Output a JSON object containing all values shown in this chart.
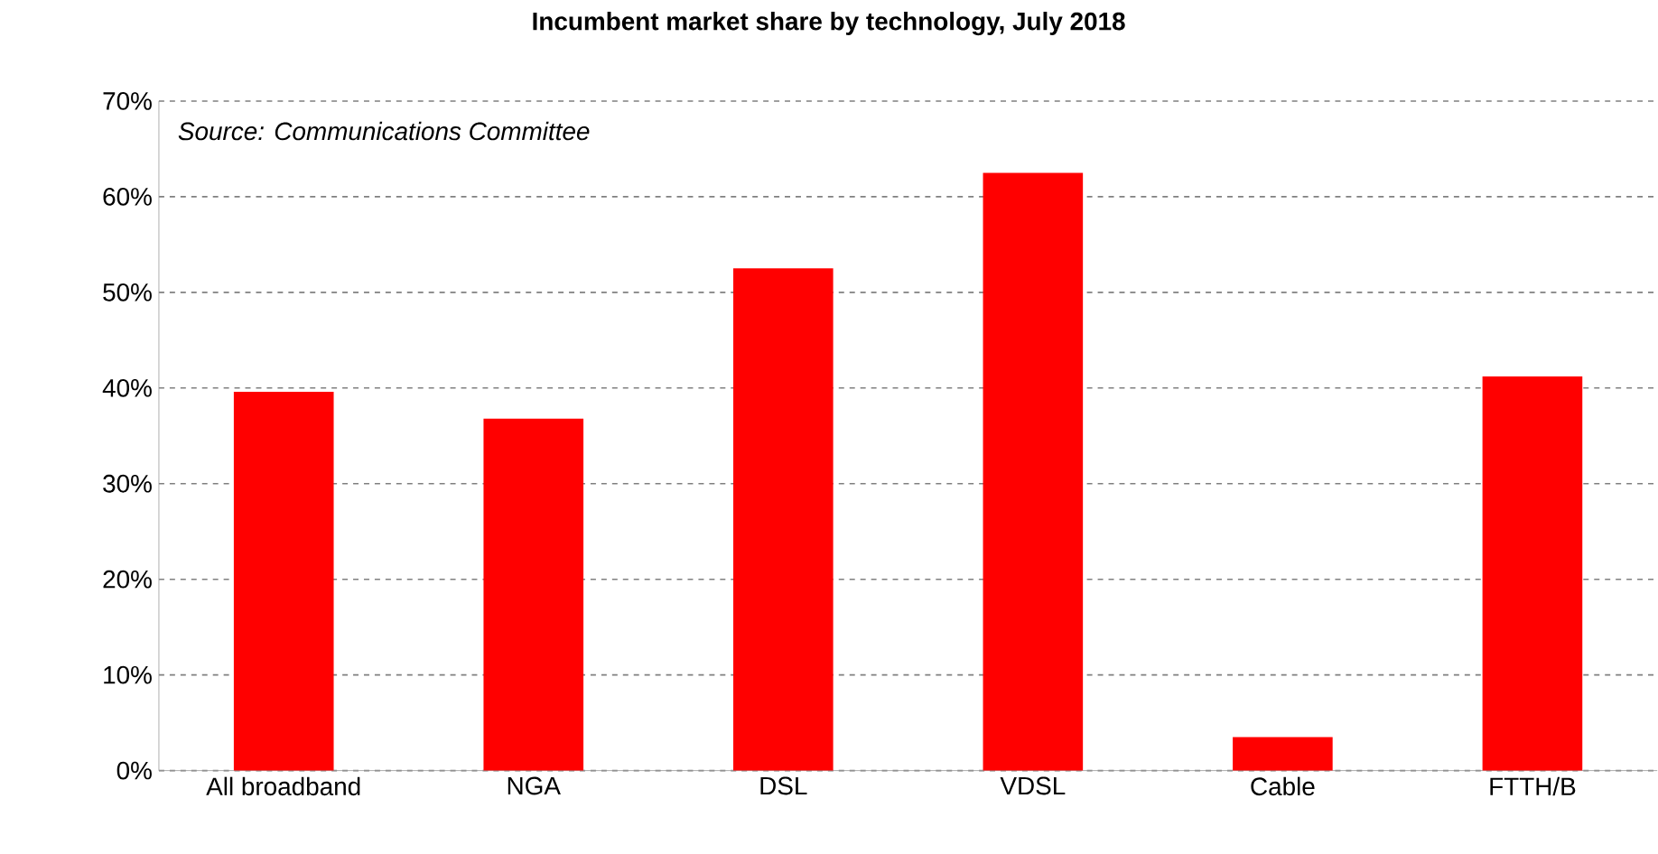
{
  "chart_data": {
    "type": "bar",
    "title": "Incumbent market share by technology, July 2018",
    "categories": [
      "All broadband",
      "NGA",
      "DSL",
      "VDSL",
      "Cable",
      "FTTH/B"
    ],
    "values": [
      39.6,
      36.8,
      52.5,
      62.5,
      3.5,
      41.2
    ],
    "color": "#ff0000",
    "ylim": [
      0,
      70
    ],
    "yticks": [
      {
        "value": 0,
        "label": "0%"
      },
      {
        "value": 10,
        "label": "10%"
      },
      {
        "value": 20,
        "label": "20%"
      },
      {
        "value": 30,
        "label": "30%"
      },
      {
        "value": 40,
        "label": "40%"
      },
      {
        "value": 50,
        "label": "50%"
      },
      {
        "value": 60,
        "label": "60%"
      },
      {
        "value": 70,
        "label": "70%"
      }
    ],
    "grid": "y",
    "annotations": [
      "Source: Communications Committee"
    ]
  }
}
